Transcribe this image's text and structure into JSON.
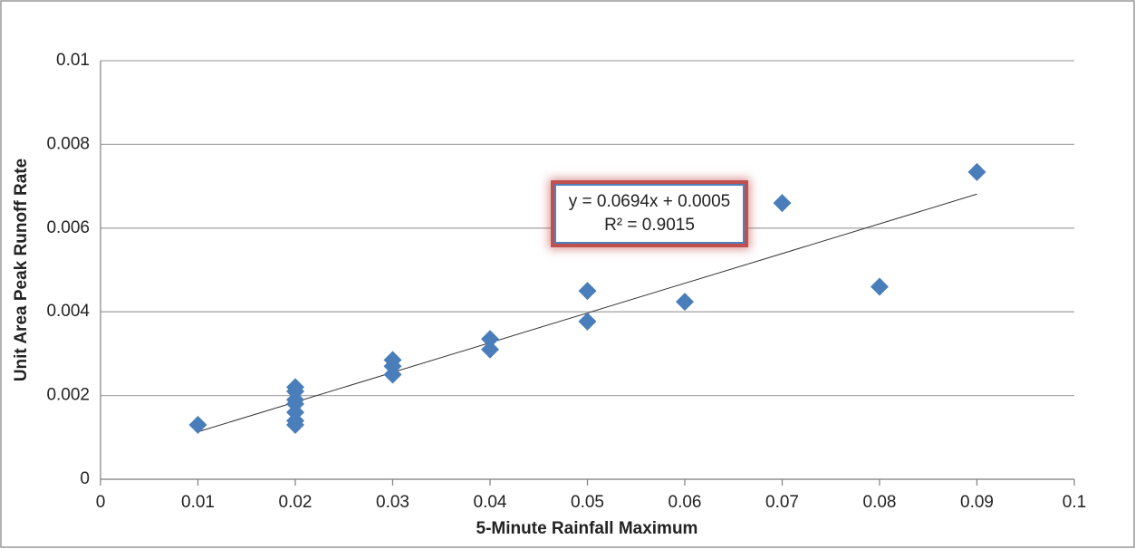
{
  "chart_data": {
    "type": "scatter",
    "x_label": "5-Minute Rainfall Maximum",
    "y_label": "Unit Area Peak Runoff Rate",
    "annotations": [
      "y = 0.0694x + 0.0005",
      "R² = 0.9015"
    ],
    "x": [
      0.01,
      0.02,
      0.02,
      0.02,
      0.02,
      0.02,
      0.02,
      0.02,
      0.03,
      0.03,
      0.03,
      0.04,
      0.04,
      0.05,
      0.05,
      0.06,
      0.07,
      0.08,
      0.09
    ],
    "values": [
      0.0013,
      0.0022,
      0.0021,
      0.0019,
      0.0018,
      0.0016,
      0.0014,
      0.0013,
      0.00285,
      0.0027,
      0.0025,
      0.00335,
      0.0031,
      0.0045,
      0.00377,
      0.00424,
      0.0066,
      0.0046,
      0.00734
    ],
    "color": "#4a7ebb",
    "trendline": true,
    "xlim": [
      0,
      0.1
    ],
    "xticks": [
      0,
      0.01,
      0.02,
      0.03,
      0.04,
      0.05,
      0.06,
      0.07,
      0.08,
      0.09,
      0.1
    ],
    "ylim": [
      0,
      0.01
    ],
    "yticks": [
      0,
      0.002,
      0.004,
      0.006,
      0.008,
      0.01
    ],
    "grid": true
  }
}
